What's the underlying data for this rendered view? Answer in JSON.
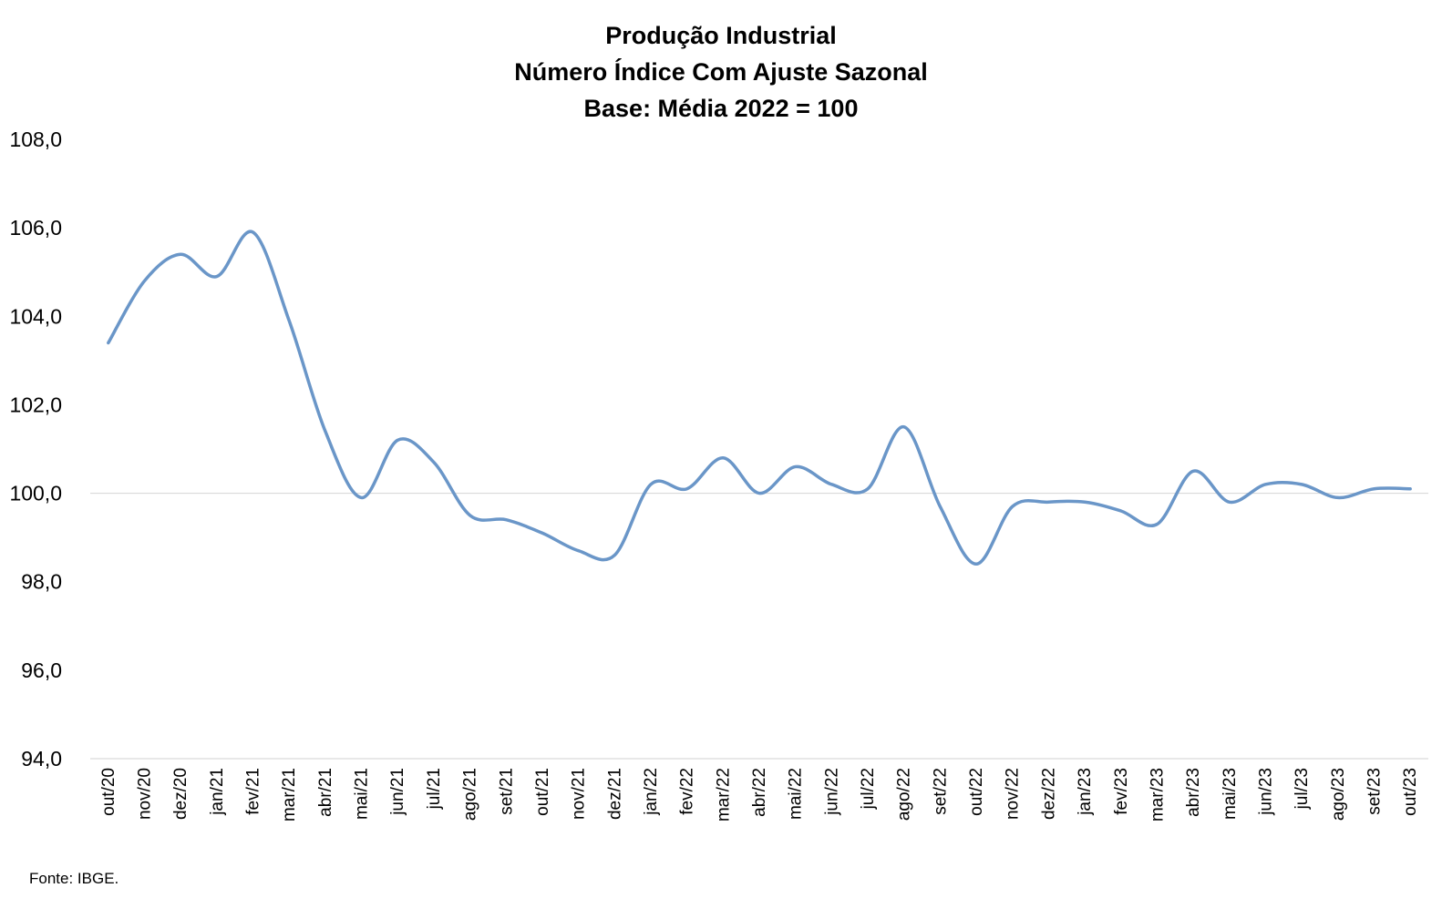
{
  "chart_data": {
    "type": "line",
    "title_lines": [
      "Produção Industrial",
      "Número Índice Com Ajuste Sazonal",
      "Base: Média 2022 = 100"
    ],
    "xlabel": "",
    "ylabel": "",
    "ylim": [
      94,
      108
    ],
    "yticks": [
      94,
      96,
      98,
      100,
      102,
      104,
      106,
      108
    ],
    "ytick_labels": [
      "94,0",
      "96,0",
      "98,0",
      "100,0",
      "102,0",
      "104,0",
      "106,0",
      "108,0"
    ],
    "reference_line": 100,
    "legend": "none",
    "grid": false,
    "line_color": "#6a96c8",
    "categories": [
      "out/20",
      "nov/20",
      "dez/20",
      "jan/21",
      "fev/21",
      "mar/21",
      "abr/21",
      "mai/21",
      "jun/21",
      "jul/21",
      "ago/21",
      "set/21",
      "out/21",
      "nov/21",
      "dez/21",
      "jan/22",
      "fev/22",
      "mar/22",
      "abr/22",
      "mai/22",
      "jun/22",
      "jul/22",
      "ago/22",
      "set/22",
      "out/22",
      "nov/22",
      "dez/22",
      "jan/23",
      "fev/23",
      "mar/23",
      "abr/23",
      "mai/23",
      "jun/23",
      "jul/23",
      "ago/23",
      "set/23",
      "out/23"
    ],
    "series": [
      {
        "values": [
          103.4,
          104.8,
          105.4,
          104.9,
          105.9,
          103.9,
          101.4,
          99.9,
          101.2,
          100.7,
          99.5,
          99.4,
          99.1,
          98.7,
          98.6,
          100.2,
          100.1,
          100.8,
          100.0,
          100.6,
          100.2,
          100.1,
          101.5,
          99.7,
          98.4,
          99.7,
          99.8,
          99.8,
          99.6,
          99.3,
          100.5,
          99.8,
          100.2,
          100.2,
          99.9,
          100.1,
          100.1
        ]
      }
    ]
  },
  "source_note": "Fonte: IBGE."
}
